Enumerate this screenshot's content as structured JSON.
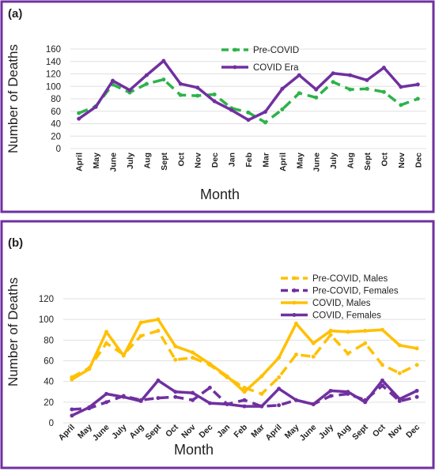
{
  "chart_data": [
    {
      "type": "line",
      "label": "(a)",
      "y_label": "Number of Deaths",
      "x_label": "Month",
      "categories": [
        "April",
        "May",
        "June",
        "July",
        "Aug",
        "Sept",
        "Oct",
        "Nov",
        "Dec",
        "Jan",
        "Feb",
        "Mar",
        "April",
        "May",
        "June",
        "July",
        "Aug",
        "Sept",
        "Oct",
        "Nov",
        "Dec"
      ],
      "ylim": [
        0,
        160
      ],
      "yticks": [
        0,
        20,
        40,
        60,
        80,
        100,
        120,
        140,
        160
      ],
      "legend": "upper center",
      "series": [
        {
          "name": "Pre-COVID",
          "color": "#2db34a",
          "dashed": true,
          "values": [
            57,
            68,
            103,
            90,
            104,
            111,
            86,
            85,
            87,
            65,
            58,
            42,
            63,
            89,
            82,
            107,
            95,
            96,
            91,
            70,
            80
          ]
        },
        {
          "name": "COVID Era",
          "color": "#7030a0",
          "dashed": false,
          "values": [
            48,
            67,
            109,
            94,
            118,
            141,
            104,
            98,
            76,
            62,
            46,
            59,
            96,
            118,
            95,
            121,
            118,
            110,
            130,
            99,
            103
          ]
        }
      ]
    },
    {
      "type": "line",
      "label": "(b)",
      "y_label": "Number of Deaths",
      "x_label": "Month",
      "categories": [
        "April",
        "May",
        "June",
        "July",
        "Aug",
        "Sept",
        "Oct",
        "Nov",
        "Dec",
        "Jan",
        "Feb",
        "Mar",
        "April",
        "May",
        "June",
        "July",
        "Aug",
        "Sept",
        "Oct",
        "Nov",
        "Dec"
      ],
      "ylim": [
        0,
        120
      ],
      "yticks": [
        0,
        20,
        40,
        60,
        80,
        100,
        120
      ],
      "legend": "upper right",
      "series": [
        {
          "name": "Pre-COVID, Males",
          "color": "#ffc000",
          "dashed": true,
          "values": [
            44,
            53,
            77,
            66,
            84,
            89,
            61,
            63,
            56,
            44,
            34,
            28,
            44,
            66,
            64,
            85,
            67,
            77,
            56,
            48,
            56
          ]
        },
        {
          "name": "Pre-COVID, Females",
          "color": "#7030a0",
          "dashed": true,
          "values": [
            13,
            14,
            20,
            26,
            22,
            24,
            25,
            22,
            34,
            18,
            22,
            16,
            17,
            22,
            18,
            26,
            28,
            22,
            36,
            21,
            25
          ]
        },
        {
          "name": "COVID, Males",
          "color": "#ffc000",
          "dashed": false,
          "values": [
            42,
            52,
            88,
            65,
            97,
            100,
            74,
            68,
            57,
            45,
            30,
            45,
            63,
            96,
            77,
            89,
            88,
            89,
            90,
            75,
            72
          ]
        },
        {
          "name": "COVID, Females",
          "color": "#7030a0",
          "dashed": false,
          "values": [
            7,
            15,
            28,
            25,
            21,
            41,
            30,
            29,
            19,
            18,
            16,
            16,
            33,
            22,
            18,
            31,
            30,
            20,
            41,
            23,
            31
          ]
        }
      ]
    }
  ]
}
